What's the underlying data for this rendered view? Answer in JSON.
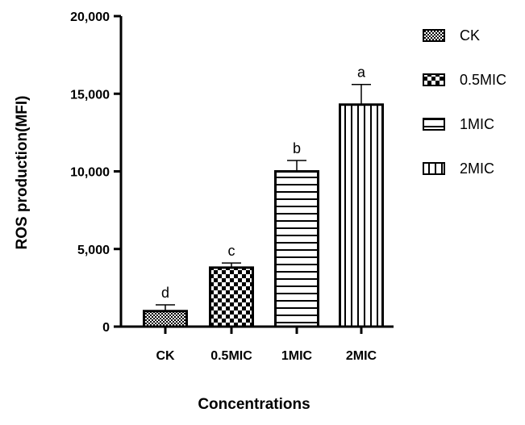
{
  "chart_data": {
    "type": "bar",
    "categories": [
      "CK",
      "0.5MIC",
      "1MIC",
      "2MIC"
    ],
    "values": [
      1000,
      3800,
      10000,
      14300
    ],
    "errors": [
      400,
      300,
      700,
      1300
    ],
    "significance_letters": [
      "d",
      "c",
      "b",
      "a"
    ],
    "patterns": [
      "fine-checker",
      "checker",
      "horizontal-stripes",
      "vertical-stripes"
    ],
    "xlabel": "Concentrations",
    "ylabel": "ROS production(MFI)",
    "ylim": [
      0,
      20000
    ],
    "yticks": [
      0,
      5000,
      10000,
      15000,
      20000
    ],
    "ytick_labels": [
      "0",
      "5,000",
      "10,000",
      "15,000",
      "20,000"
    ],
    "legend": {
      "position": "right",
      "entries": [
        "CK",
        "0.5MIC",
        "1MIC",
        "2MIC"
      ]
    },
    "grid": false,
    "colors": {
      "bar_stroke": "#000000",
      "background": "#ffffff"
    }
  }
}
